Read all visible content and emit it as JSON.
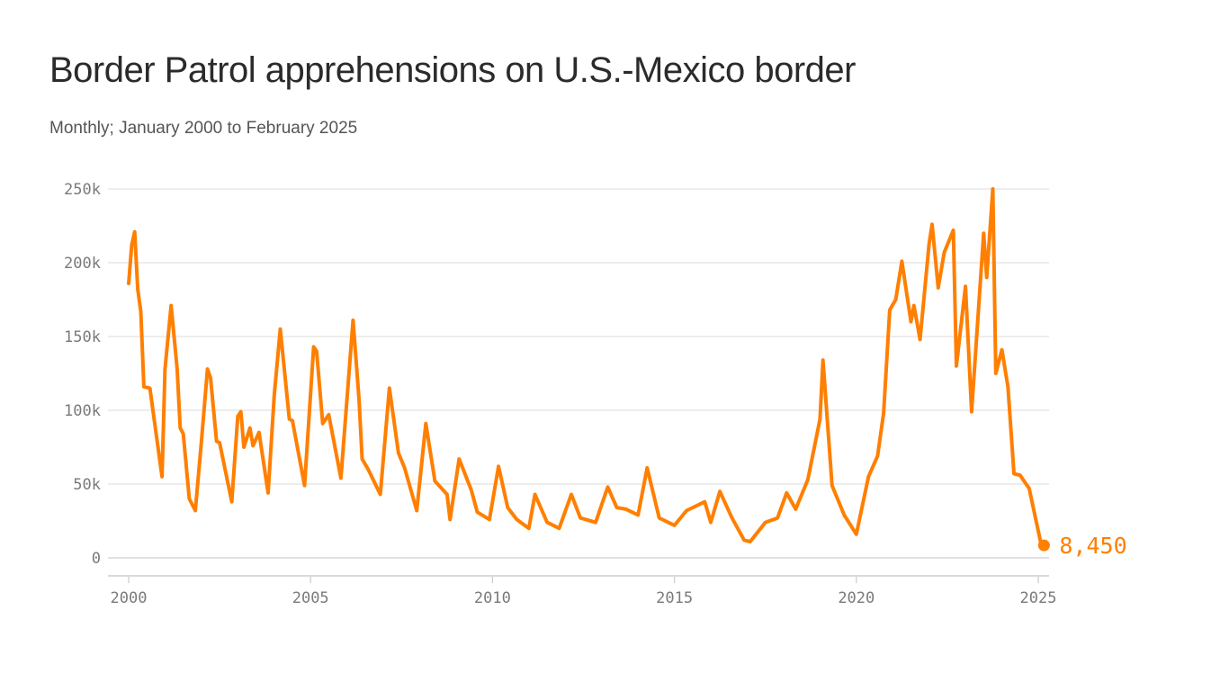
{
  "title": "Border Patrol apprehensions on U.S.-Mexico border",
  "subtitle": "Monthly; January 2000 to February 2025",
  "chart_data": {
    "type": "line",
    "title": "Border Patrol apprehensions on U.S.-Mexico border",
    "subtitle": "Monthly; January 2000 to February 2025",
    "xlabel": "",
    "ylabel": "",
    "unit": "thousands",
    "ylim": [
      0,
      250
    ],
    "xlim": [
      "2000-01",
      "2025-02"
    ],
    "yticks": [
      0,
      50,
      100,
      150,
      200,
      250
    ],
    "ytick_labels": [
      "0",
      "50k",
      "100k",
      "150k",
      "200k",
      "250k"
    ],
    "xticks": [
      "2000",
      "2005",
      "2010",
      "2015",
      "2020",
      "2025"
    ],
    "grid": "horizontal",
    "legend": "none",
    "color": "#ff7f00",
    "end_label": "8,450",
    "series": [
      {
        "x": [
          "2000-01",
          "2000-02",
          "2000-03",
          "2000-04",
          "2000-05",
          "2000-06",
          "2000-08",
          "2000-12",
          "2001-01",
          "2001-03",
          "2001-05",
          "2001-06",
          "2001-07",
          "2001-09",
          "2001-11",
          "2002-01",
          "2002-03",
          "2002-04",
          "2002-06",
          "2002-07",
          "2002-11",
          "2003-01",
          "2003-02",
          "2003-03",
          "2003-05",
          "2003-06",
          "2003-08",
          "2003-11",
          "2004-01",
          "2004-03",
          "2004-06",
          "2004-07",
          "2004-11",
          "2005-02",
          "2005-03",
          "2005-05",
          "2005-07",
          "2005-11",
          "2006-03",
          "2006-05",
          "2006-06",
          "2006-08",
          "2006-12",
          "2007-03",
          "2007-06",
          "2007-08",
          "2007-12",
          "2008-03",
          "2008-06",
          "2008-10",
          "2008-11",
          "2009-02",
          "2009-06",
          "2009-08",
          "2009-12",
          "2010-03",
          "2010-06",
          "2010-09",
          "2011-01",
          "2011-03",
          "2011-07",
          "2011-11",
          "2012-03",
          "2012-06",
          "2012-11",
          "2013-03",
          "2013-06",
          "2013-09",
          "2014-01",
          "2014-04",
          "2014-08",
          "2015-01",
          "2015-05",
          "2015-11",
          "2016-01",
          "2016-04",
          "2016-08",
          "2016-12",
          "2017-02",
          "2017-07",
          "2017-11",
          "2018-02",
          "2018-05",
          "2018-09",
          "2019-01",
          "2019-02",
          "2019-05",
          "2019-09",
          "2020-01",
          "2020-05",
          "2020-08",
          "2020-10",
          "2020-12",
          "2021-02",
          "2021-04",
          "2021-07",
          "2021-08",
          "2021-10",
          "2022-01",
          "2022-02",
          "2022-04",
          "2022-06",
          "2022-09",
          "2022-10",
          "2023-01",
          "2023-03",
          "2023-07",
          "2023-08",
          "2023-10",
          "2023-11",
          "2024-01",
          "2024-03",
          "2024-05",
          "2024-07",
          "2024-10",
          "2025-02"
        ],
        "y": [
          186,
          212,
          221,
          182,
          167,
          116,
          115,
          55,
          128,
          171,
          128,
          88,
          84,
          40,
          32,
          79,
          128,
          122,
          79,
          78,
          38,
          96,
          99,
          75,
          88,
          76,
          85,
          44,
          110,
          155,
          94,
          93,
          49,
          143,
          140,
          91,
          97,
          54,
          161,
          107,
          67,
          60,
          43,
          115,
          71,
          61,
          32,
          91,
          52,
          43,
          26,
          67,
          46,
          31,
          26,
          62,
          34,
          26,
          20,
          43,
          24,
          20,
          43,
          27,
          24,
          48,
          34,
          33,
          29,
          61,
          27,
          22,
          32,
          38,
          24,
          45,
          27,
          12,
          11,
          24,
          27,
          44,
          33,
          53,
          94,
          134,
          49,
          29,
          16,
          55,
          69,
          98,
          168,
          175,
          201,
          160,
          171,
          148,
          213,
          226,
          183,
          207,
          222,
          130,
          184,
          99,
          220,
          190,
          250,
          125,
          141,
          116,
          57,
          56,
          47,
          8.45
        ]
      }
    ]
  }
}
